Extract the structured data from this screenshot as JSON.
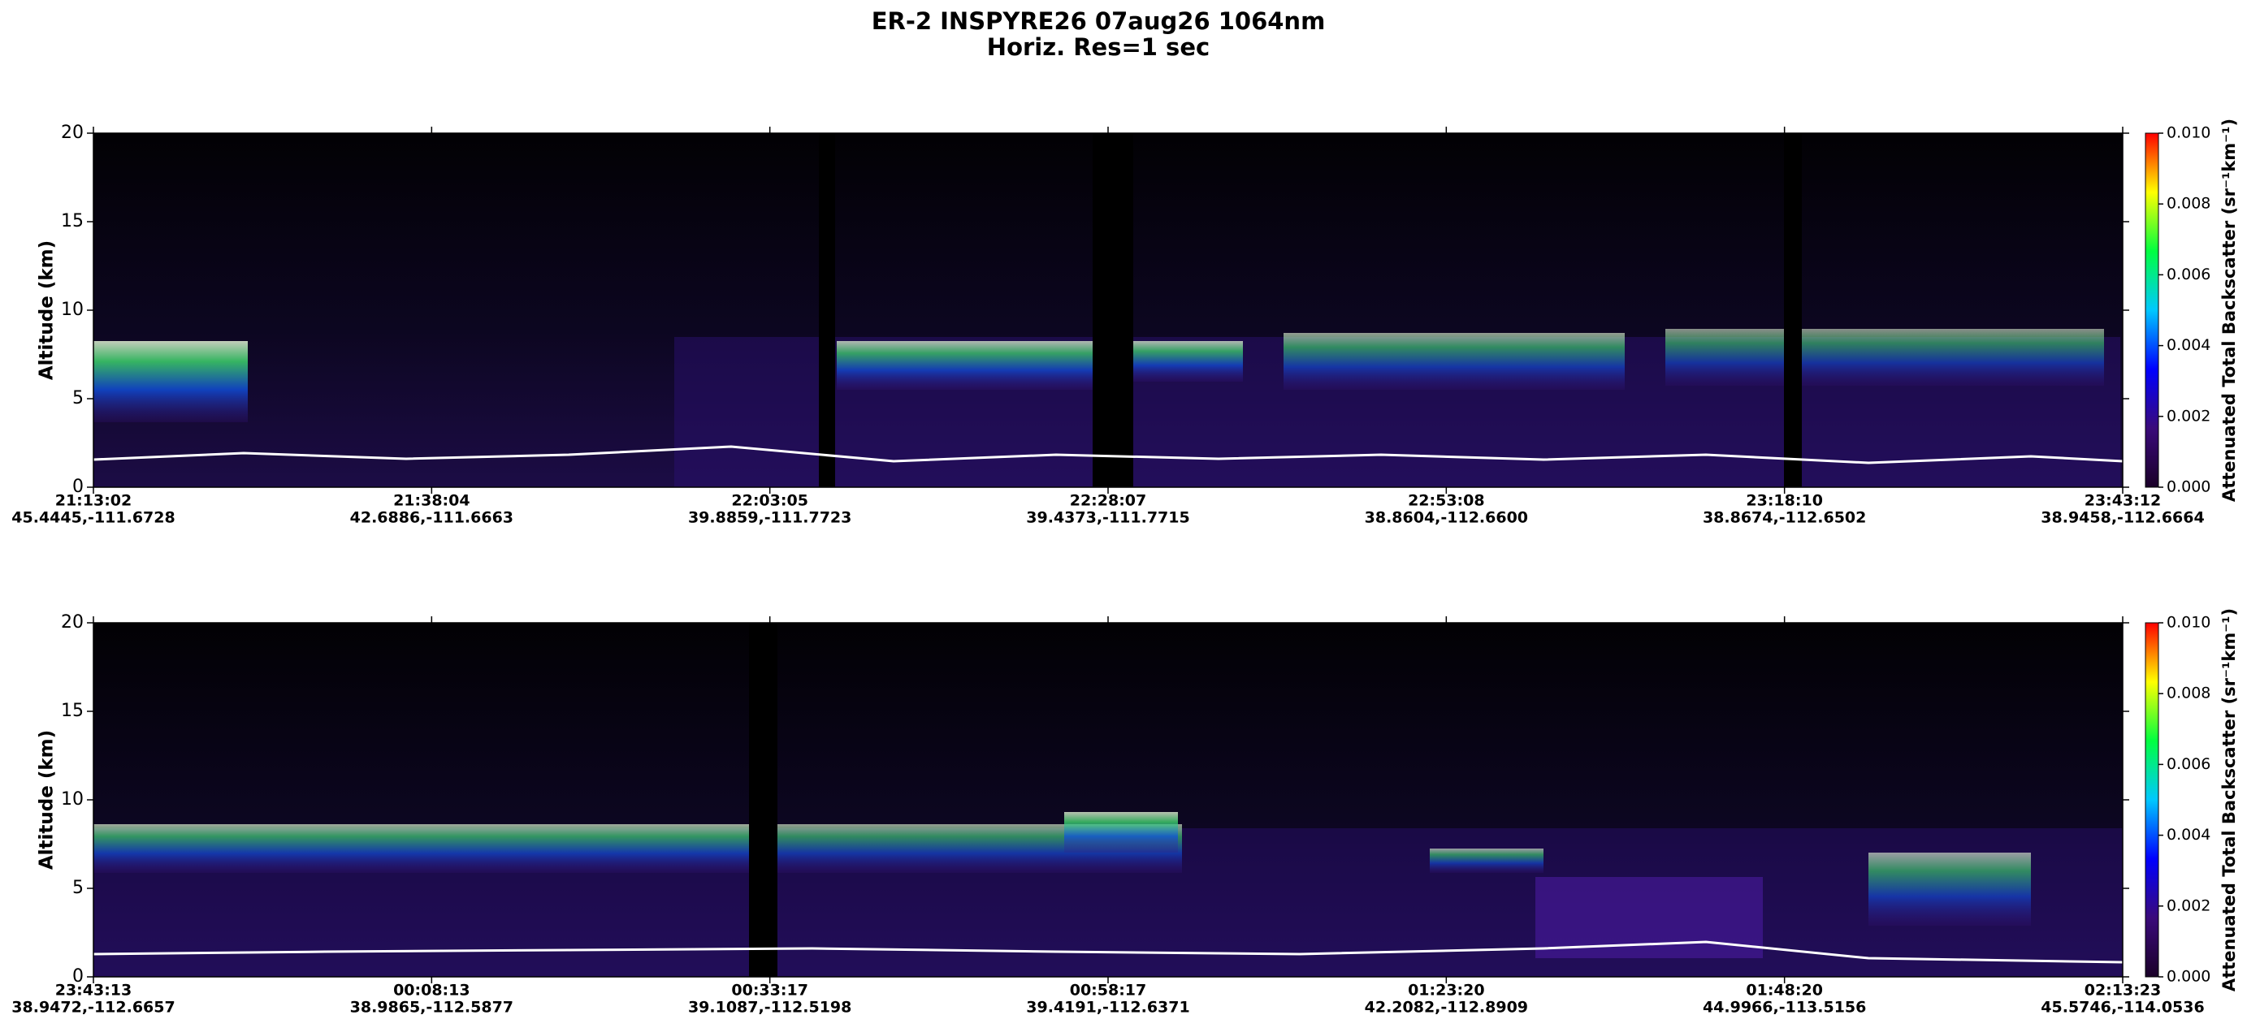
{
  "chart_data": [
    {
      "type": "heatmap",
      "title": "ER-2  INSPYRE26  07aug26  1064nm",
      "subtitle": "Horiz. Res=1 sec",
      "y_label": "Altitude (km)",
      "ylim": [
        0,
        20
      ],
      "yticks": [
        0,
        5,
        10,
        15,
        20
      ],
      "categories": [
        "21:13:02",
        "21:38:04",
        "22:03:05",
        "22:28:07",
        "22:53:08",
        "23:18:10",
        "23:43:12"
      ],
      "coordinates": [
        "45.4445,-111.6728",
        "42.6886,-111.6663",
        "39.8859,-111.7723",
        "39.4373,-111.7715",
        "38.8604,-112.6600",
        "38.8674,-112.6502",
        "38.9458,-112.6664"
      ],
      "colorbar_label": "Attenuated Total Backscatter (sr⁻¹km⁻¹)",
      "clim": [
        0,
        0.01
      ],
      "cticks": [
        {
          "value": 0,
          "label": "0.000"
        },
        {
          "value": 0.002,
          "label": "0.002"
        },
        {
          "value": 0.004,
          "label": "0.004"
        },
        {
          "value": 0.006,
          "label": "0.006"
        },
        {
          "value": 0.008,
          "label": "0.008"
        },
        {
          "value": 0.01,
          "label": "0.010"
        }
      ],
      "colormap": [
        "#1a0028",
        "#3a0a7a",
        "#0000ff",
        "#00c8ff",
        "#00ff40",
        "#ffff00",
        "#ff0000"
      ]
    },
    {
      "type": "heatmap",
      "y_label": "Altitude (km)",
      "ylim": [
        0,
        20
      ],
      "yticks": [
        0,
        5,
        10,
        15,
        20
      ],
      "categories": [
        "23:43:13",
        "00:08:13",
        "00:33:17",
        "00:58:17",
        "01:23:20",
        "01:48:20",
        "02:13:23"
      ],
      "coordinates": [
        "38.9472,-112.6657",
        "38.9865,-112.5877",
        "39.1087,-112.5198",
        "39.4191,-112.6371",
        "42.2082,-112.8909",
        "44.9966,-113.5156",
        "45.5746,-114.0536"
      ],
      "colorbar_label": "Attenuated Total Backscatter (sr⁻¹km⁻¹)",
      "clim": [
        0,
        0.01
      ],
      "cticks": [
        {
          "value": 0,
          "label": "0.000"
        },
        {
          "value": 0.002,
          "label": "0.002"
        },
        {
          "value": 0.004,
          "label": "0.004"
        },
        {
          "value": 0.006,
          "label": "0.006"
        },
        {
          "value": 0.008,
          "label": "0.008"
        },
        {
          "value": 0.01,
          "label": "0.010"
        }
      ],
      "colormap": [
        "#1a0028",
        "#3a0a7a",
        "#0000ff",
        "#00c8ff",
        "#00ff40",
        "#ffff00",
        "#ff0000"
      ]
    }
  ]
}
